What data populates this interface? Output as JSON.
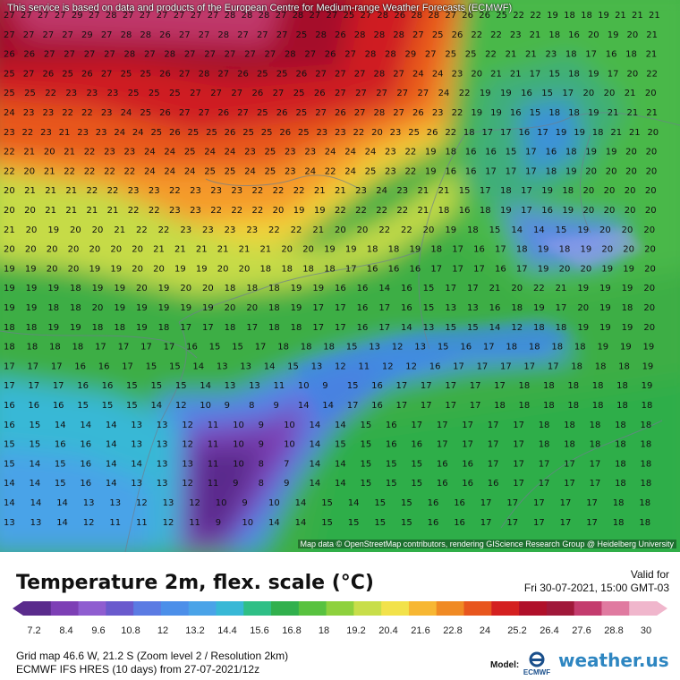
{
  "top_credit": "This service is based on data and products of the European Centre for Medium-range Weather Forecasts (ECMWF)",
  "bottom_credit": "Map data © OpenStreetMap contributors, rendering GIScience Research Group @ Heidelberg University",
  "title": "Temperature 2m, flex. scale (°C)",
  "valid_label": "Valid for",
  "valid_time": "Fri 30-07-2021, 15:00 GMT-03",
  "scale_ticks": [
    "7.2",
    "8.4",
    "9.6",
    "10.8",
    "12",
    "13.2",
    "14.4",
    "15.6",
    "16.8",
    "18",
    "19.2",
    "20.4",
    "21.6",
    "22.8",
    "24",
    "25.2",
    "26.4",
    "27.6",
    "28.8",
    "30"
  ],
  "scale_colors": [
    "#5a2b8c",
    "#7d3fb5",
    "#8f5dd0",
    "#6a5acd",
    "#5b7be3",
    "#4c8fe9",
    "#4aa3e8",
    "#38b8d6",
    "#2fbf86",
    "#31b04d",
    "#58c23f",
    "#8ed13d",
    "#c8de4a",
    "#f2e24b",
    "#f7b733",
    "#f08a24",
    "#e8561e",
    "#d42020",
    "#b0102a",
    "#a0183a",
    "#c43c6e",
    "#e07aa0",
    "#f0b6cc"
  ],
  "grid_info": "Grid map 46.6 W, 21.2 S (Zoom level 2 / Resolution 2km)",
  "model_info": "ECMWF IFS HRES (10 days) from 27-07-2021/12z",
  "model_label": "Model:",
  "ecmwf_label": "ECMWF",
  "brand": "weather.us",
  "grid_rows": [
    "27 27 27 27 29 27 28 27 27 27 27 27 27 28 28 28 27 28 27 27 25 27 28 26 28 28 27 26 26 25 22 22 19 18 18 19 21 21 21",
    "27 27 27 27 29 27 28 28 26 27 27 28 27 27 27 25 28 26 28 28 28 27 25 26 22 22 23 21 18 16 20 19 20 21",
    "26 26 27 27 27 27 28 27 28 27 27 27 27 27 28 27 26 27 28 28 29 27 25 25 22 21 21 23 18 17 16 18 21",
    "25 27 26 25 26 27 25 25 26 27 28 27 26 25 25 26 27 27 27 28 27 24 24 23 20 21 21 17 15 18 19 17 20 22",
    "25 25 22 23 23 23 25 25 25 27 27 27 26 27 25 26 27 27 27 27 27 24 22 19 19 16 15 17 20 20 21 20",
    "24 23 23 22 22 23 24 25 26 27 27 26 27 25 26 25 27 26 27 28 27 26 23 22 19 19 16 15 18 18 19 21 21 21",
    "23 22 23 21 23 23 24 24 25 26 25 25 26 25 25 26 25 23 23 22 20 23 25 26 22 18 17 17 16 17 19 19 18 21 21 20",
    "22 21 20 21 22 23 23 24 24 25 24 24 23 25 23 23 24 24 24 23 22 19 18 16 16 15 17 16 18 19 19 20 20",
    "22 20 21 22 22 22 22 24 24 24 25 25 24 25 23 24 22 24 25 23 22 19 16 16 17 17 17 18 19 20 20 20 20",
    "20 21 21 21 22 22 23 23 22 23 23 23 22 22 22 21 21 23 24 23 21 21 15 17 18 17 19 18 20 20 20 20",
    "20 20 21 21 21 21 22 22 23 23 22 22 22 20 19 19 22 22 22 22 21 18 16 18 19 17 16 19 20 20 20 20",
    "21 20 19 20 20 21 22 22 23 23 23 23 22 22 21 20 20 22 22 20 19 18 15 14 14 15 19 20 20 20",
    "20 20 20 20 20 20 20 21 21 21 21 21 21 20 20 19 19 18 18 19 18 17 16 17 18 19 18 19 20 20 20",
    "19 19 20 20 19 19 20 20 19 19 20 20 18 18 18 18 17 16 16 16 17 17 17 16 17 19 20 20 19 19 20",
    "19 19 19 18 19 19 20 19 20 20 18 18 18 19 19 16 16 14 16 15 17 17 21 20 22 21 19 19 19 20",
    "19 19 18 18 20 19 19 19 19 19 20 20 18 19 17 17 16 17 16 15 13 13 16 18 19 17 20 19 18 20",
    "18 18 19 19 18 18 19 18 17 17 18 17 18 18 17 17 16 17 14 13 15 15 14 12 18 18 19 19 19 20",
    "18 18 18 18 17 17 17 17 16 15 15 17 18 18 18 15 13 12 13 15 16 17 18 18 18 18 19 19 19",
    "17 17 17 16 16 17 15 15 14 13 13 14 15 13 12 11 12 12 16 17 17 17 17 17 18 18 18 19",
    "17 17 17 16 16 15 15 15 14 13 13 11 10 9 15 16 17 17 17 17 17 18 18 18 18 18 19",
    "16 16 16 15 15 15 14 12 10 9 8 9 14 14 17 16 17 17 17 17 18 18 18 18 18 18 18",
    "16 15 14 14 14 13 13 12 11 10 9 10 14 14 15 16 17 17 17 17 17 18 18 18 18 18",
    "15 15 16 16 14 13 13 12 11 10 9 10 14 15 15 16 16 17 17 17 17 18 18 18 18 18",
    "15 14 15 16 14 14 13 13 11 10 8 7 14 14 15 15 15 16 16 17 17 17 17 17 18 18",
    "14 14 15 16 14 13 13 12 11 9 8 9 14 14 15 15 15 16 16 16 17 17 17 17 18 18",
    "14 14 14 13 13 12 13 12 10 9 10 14 15 14 15 15 16 16 17 17 17 17 17 18 18",
    "13 13 14 12 11 11 12 11 9 10 14 14 15 15 15 15 16 16 17 17 17 17 17 18 18"
  ]
}
